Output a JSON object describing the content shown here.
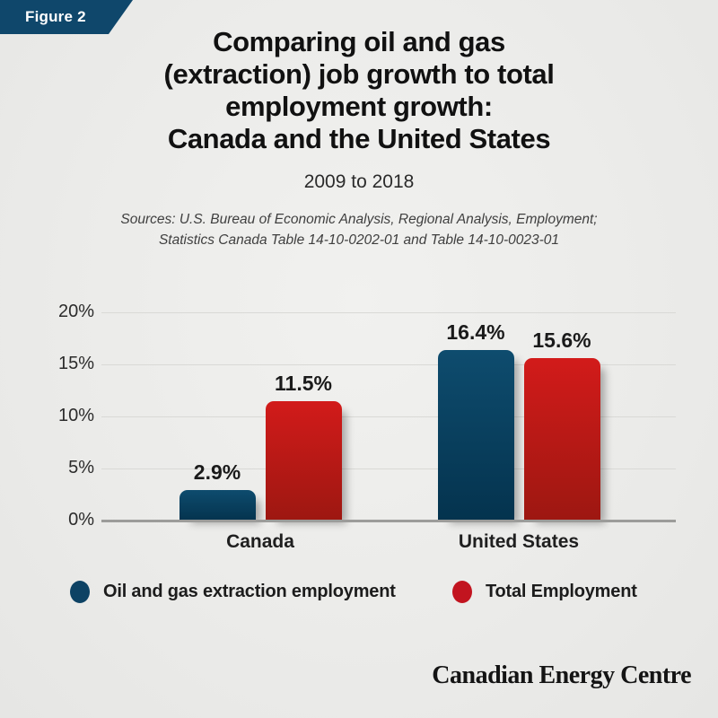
{
  "figure_badge": {
    "label": "Figure 2"
  },
  "header": {
    "title": "Comparing oil and gas\n(extraction) job growth to total\nemployment growth:\nCanada and the United States",
    "subtitle": "2009 to 2018",
    "sources": "Sources: U.S. Bureau of Economic Analysis, Regional Analysis, Employment;\nStatistics Canada Table 14-10-0202-01 and Table 14-10-0023-01"
  },
  "chart_data": {
    "type": "bar",
    "title": "Comparing oil and gas (extraction) job growth to total employment growth: Canada and the United States",
    "subtitle": "2009 to 2018",
    "categories": [
      "Canada",
      "United States"
    ],
    "series": [
      {
        "name": "Oil and gas extraction employment",
        "values": [
          2.9,
          16.4
        ],
        "value_labels": [
          "2.9%",
          "16.4%"
        ],
        "color_top": "#0e4c6e",
        "color_bottom": "#04334e"
      },
      {
        "name": "Total Employment",
        "values": [
          11.5,
          15.6
        ],
        "value_labels": [
          "11.5%",
          "15.6%"
        ],
        "color_top": "#d21b1a",
        "color_bottom": "#9d1711"
      }
    ],
    "ylim": [
      0,
      20
    ],
    "yticks": [
      0,
      5,
      10,
      15,
      20
    ],
    "ytick_labels": [
      "0%",
      "5%",
      "10%",
      "15%",
      "20%"
    ],
    "grid": true,
    "legend_position": "bottom"
  },
  "legend": {
    "items": [
      {
        "label": "Oil and gas extraction employment",
        "color": "#0d4264"
      },
      {
        "label": "Total Employment",
        "color": "#c2141f"
      }
    ]
  },
  "footer": {
    "brand": "Canadian Energy Centre"
  },
  "colors": {
    "banner_blue": "#0f476b",
    "background": "#ebebe9",
    "gridline": "#d9d9d6",
    "axis": "#9c9c9a"
  }
}
